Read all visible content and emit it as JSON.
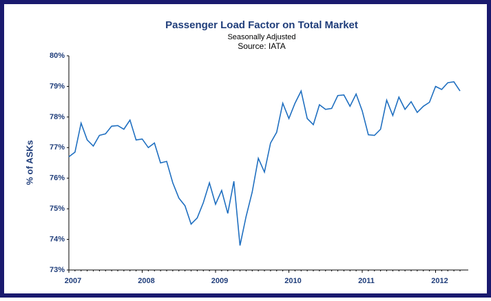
{
  "chart_data": {
    "type": "line",
    "title": "Passenger Load Factor on Total Market",
    "subtitle": "Seasonally Adjusted",
    "source": "Source: IATA",
    "ylabel": "% of ASKs",
    "categories": [
      "2007",
      null,
      null,
      null,
      null,
      null,
      null,
      null,
      null,
      null,
      null,
      null,
      "2008",
      null,
      null,
      null,
      null,
      null,
      null,
      null,
      null,
      null,
      null,
      null,
      "2009",
      null,
      null,
      null,
      null,
      null,
      null,
      null,
      null,
      null,
      null,
      null,
      "2010",
      null,
      null,
      null,
      null,
      null,
      null,
      null,
      null,
      null,
      null,
      null,
      "2011",
      null,
      null,
      null,
      null,
      null,
      null,
      null,
      null,
      null,
      null,
      null,
      "2012",
      null,
      null,
      null,
      null
    ],
    "series": [
      {
        "color": "#1f6fc0",
        "values": [
          76.7,
          76.85,
          77.8,
          77.25,
          77.05,
          77.4,
          77.45,
          77.7,
          77.72,
          77.6,
          77.9,
          77.25,
          77.28,
          77.0,
          77.15,
          76.5,
          76.55,
          75.85,
          75.35,
          75.1,
          74.5,
          74.7,
          75.2,
          75.85,
          75.15,
          75.6,
          74.85,
          75.9,
          73.8,
          74.75,
          75.55,
          76.65,
          76.2,
          77.15,
          77.5,
          78.45,
          77.95,
          78.45,
          78.85,
          77.95,
          77.75,
          78.4,
          78.25,
          78.28,
          78.7,
          78.72,
          78.35,
          78.75,
          78.2,
          77.42,
          77.4,
          77.6,
          78.55,
          78.05,
          78.65,
          78.25,
          78.5,
          78.15,
          78.35,
          78.48,
          79.0,
          78.9,
          79.12,
          79.15,
          78.85
        ]
      }
    ],
    "ylim": [
      73,
      80
    ],
    "yticks": [
      {
        "value": 73,
        "label": "73%"
      },
      {
        "value": 74,
        "label": "74%"
      },
      {
        "value": 75,
        "label": "75%"
      },
      {
        "value": 76,
        "label": "76%"
      },
      {
        "value": 77,
        "label": "77%"
      },
      {
        "value": 78,
        "label": "78%"
      },
      {
        "value": 79,
        "label": "79%"
      },
      {
        "value": 80,
        "label": "80%"
      }
    ]
  }
}
